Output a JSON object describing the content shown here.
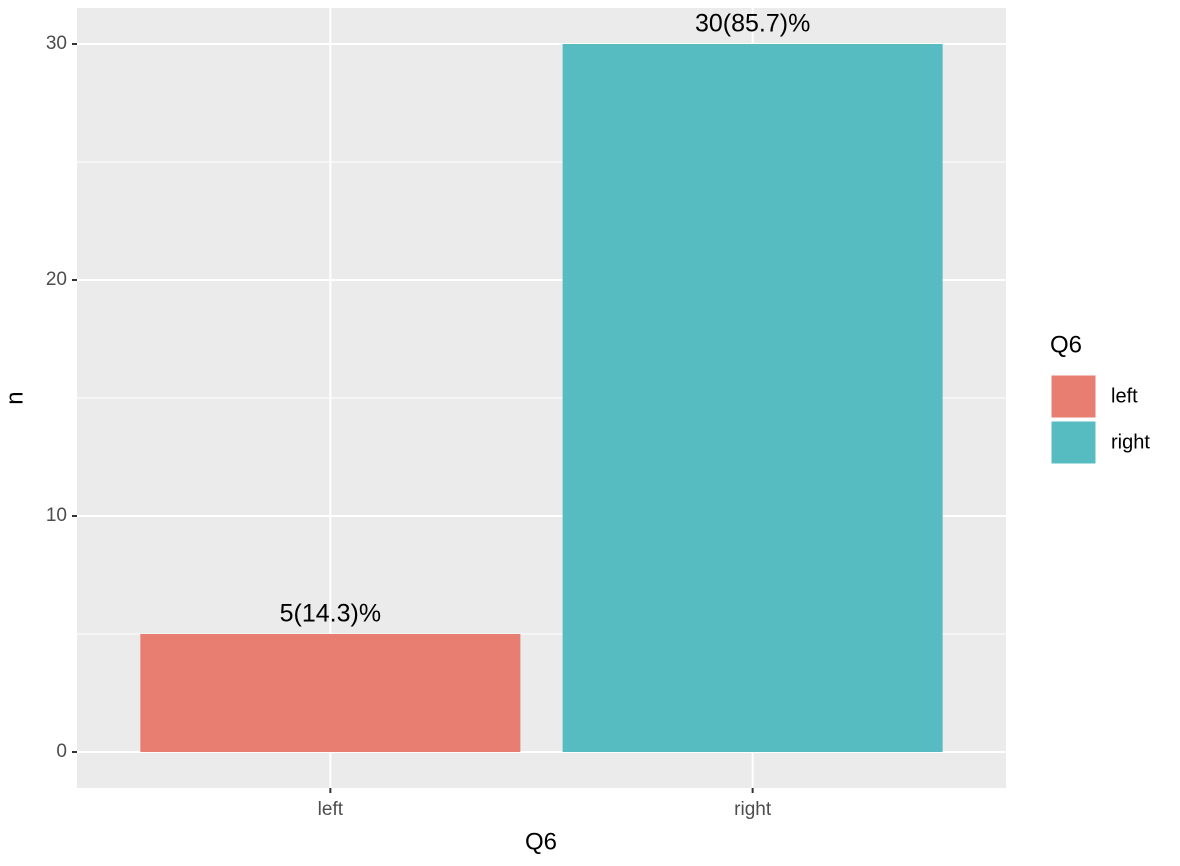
{
  "chart_data": {
    "type": "bar",
    "categories": [
      "left",
      "right"
    ],
    "values": [
      5,
      30
    ],
    "value_labels": [
      "5(14.3)%",
      "30(85.7)%"
    ],
    "colors": [
      "#e87d72",
      "#56bcc2"
    ],
    "x_label": "Q6",
    "y_label": "n",
    "legend_title": "Q6",
    "ylim": [
      -1.525,
      31.525
    ],
    "yticks": [
      0,
      10,
      20,
      30
    ],
    "grid": true
  }
}
